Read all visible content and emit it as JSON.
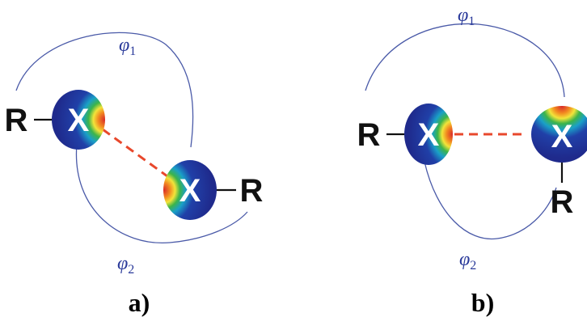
{
  "colors": {
    "atom_core": "#1f2a8c",
    "arc": "#4a5aa8",
    "interaction": "#e8482c",
    "bond": "#111111",
    "label": "#2a3a9a"
  },
  "panel_a": {
    "label": "a)",
    "atom1": {
      "symbol": "X",
      "substituent": "R"
    },
    "atom2": {
      "symbol": "X",
      "substituent": "R"
    },
    "angle1": {
      "symbol": "φ",
      "subscript": "1"
    },
    "angle2": {
      "symbol": "φ",
      "subscript": "2"
    }
  },
  "panel_b": {
    "label": "b)",
    "atom1": {
      "symbol": "X",
      "substituent": "R"
    },
    "atom2": {
      "symbol": "X",
      "substituent": "R"
    },
    "angle1": {
      "symbol": "φ",
      "subscript": "1"
    },
    "angle2": {
      "symbol": "φ",
      "subscript": "2"
    }
  }
}
